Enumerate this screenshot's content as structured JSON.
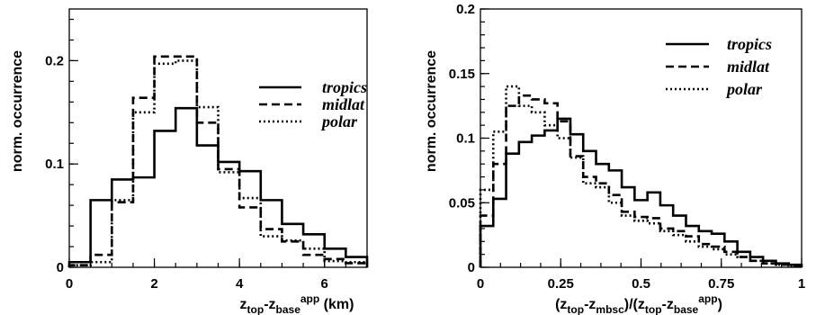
{
  "chart_data": [
    {
      "type": "histogram",
      "xlabel_parts": [
        "z",
        "top",
        "-z",
        "base",
        "app",
        " (km)"
      ],
      "ylabel": "norm. occurrence",
      "xlim": [
        0,
        7
      ],
      "ylim": [
        0,
        0.25
      ],
      "xticks": [
        0,
        2,
        4,
        6
      ],
      "xtick_labels": [
        "0",
        "2",
        "4",
        "6"
      ],
      "yticks": [
        0,
        0.1,
        0.2
      ],
      "ytick_labels": [
        "0",
        "0.1",
        "0.2"
      ],
      "legend_position": "right",
      "bin_edges": [
        0,
        0.5,
        1,
        1.5,
        2,
        2.5,
        3,
        3.5,
        4,
        4.5,
        5,
        5.5,
        6,
        6.5,
        7
      ],
      "series": [
        {
          "name": "tropics",
          "style": "solid",
          "values": [
            0.005,
            0.065,
            0.085,
            0.087,
            0.132,
            0.154,
            0.118,
            0.102,
            0.093,
            0.065,
            0.042,
            0.032,
            0.018,
            0.01
          ]
        },
        {
          "name": "midlat",
          "style": "dashed",
          "values": [
            0.002,
            0.012,
            0.063,
            0.164,
            0.204,
            0.204,
            0.14,
            0.095,
            0.058,
            0.037,
            0.025,
            0.012,
            0.008,
            0.004
          ]
        },
        {
          "name": "polar",
          "style": "dotted",
          "values": [
            0.002,
            0.005,
            0.065,
            0.15,
            0.197,
            0.2,
            0.155,
            0.092,
            0.067,
            0.03,
            0.026,
            0.018,
            0.006,
            0.005
          ]
        }
      ]
    },
    {
      "type": "histogram",
      "xlabel_parts": [
        "(z",
        "top",
        "-z",
        "mbsc",
        ")/(z",
        "top",
        "-z",
        "base",
        "app",
        ")"
      ],
      "ylabel": "norm. occurrence",
      "xlim": [
        0,
        1
      ],
      "ylim": [
        0,
        0.2
      ],
      "xticks": [
        0,
        0.25,
        0.5,
        0.75,
        1
      ],
      "xtick_labels": [
        "0",
        "0.25",
        "0.5",
        "0.75",
        "1"
      ],
      "yticks": [
        0,
        0.05,
        0.1,
        0.15,
        0.2
      ],
      "ytick_labels": [
        "0",
        "0.05",
        "0.1",
        "0.15",
        "0.2"
      ],
      "legend_position": "top-right",
      "bin_edges": [
        0,
        0.04,
        0.08,
        0.12,
        0.16,
        0.2,
        0.24,
        0.28,
        0.32,
        0.36,
        0.4,
        0.44,
        0.48,
        0.52,
        0.56,
        0.6,
        0.64,
        0.68,
        0.72,
        0.76,
        0.8,
        0.84,
        0.88,
        0.92,
        0.96,
        1.0
      ],
      "series": [
        {
          "name": "tropics",
          "style": "solid",
          "values": [
            0.032,
            0.053,
            0.088,
            0.097,
            0.102,
            0.106,
            0.115,
            0.103,
            0.09,
            0.08,
            0.075,
            0.062,
            0.052,
            0.058,
            0.048,
            0.04,
            0.032,
            0.028,
            0.026,
            0.02,
            0.012,
            0.008,
            0.005,
            0.003,
            0.002
          ]
        },
        {
          "name": "midlat",
          "style": "dashed",
          "values": [
            0.04,
            0.08,
            0.125,
            0.133,
            0.13,
            0.127,
            0.113,
            0.086,
            0.07,
            0.065,
            0.056,
            0.043,
            0.039,
            0.038,
            0.03,
            0.028,
            0.024,
            0.018,
            0.016,
            0.012,
            0.008,
            0.005,
            0.003,
            0.002,
            0.001
          ]
        },
        {
          "name": "polar",
          "style": "dotted",
          "values": [
            0.06,
            0.105,
            0.14,
            0.125,
            0.12,
            0.11,
            0.1,
            0.085,
            0.065,
            0.062,
            0.05,
            0.04,
            0.036,
            0.034,
            0.028,
            0.025,
            0.02,
            0.016,
            0.014,
            0.01,
            0.008,
            0.005,
            0.003,
            0.002,
            0.001
          ]
        }
      ]
    }
  ]
}
